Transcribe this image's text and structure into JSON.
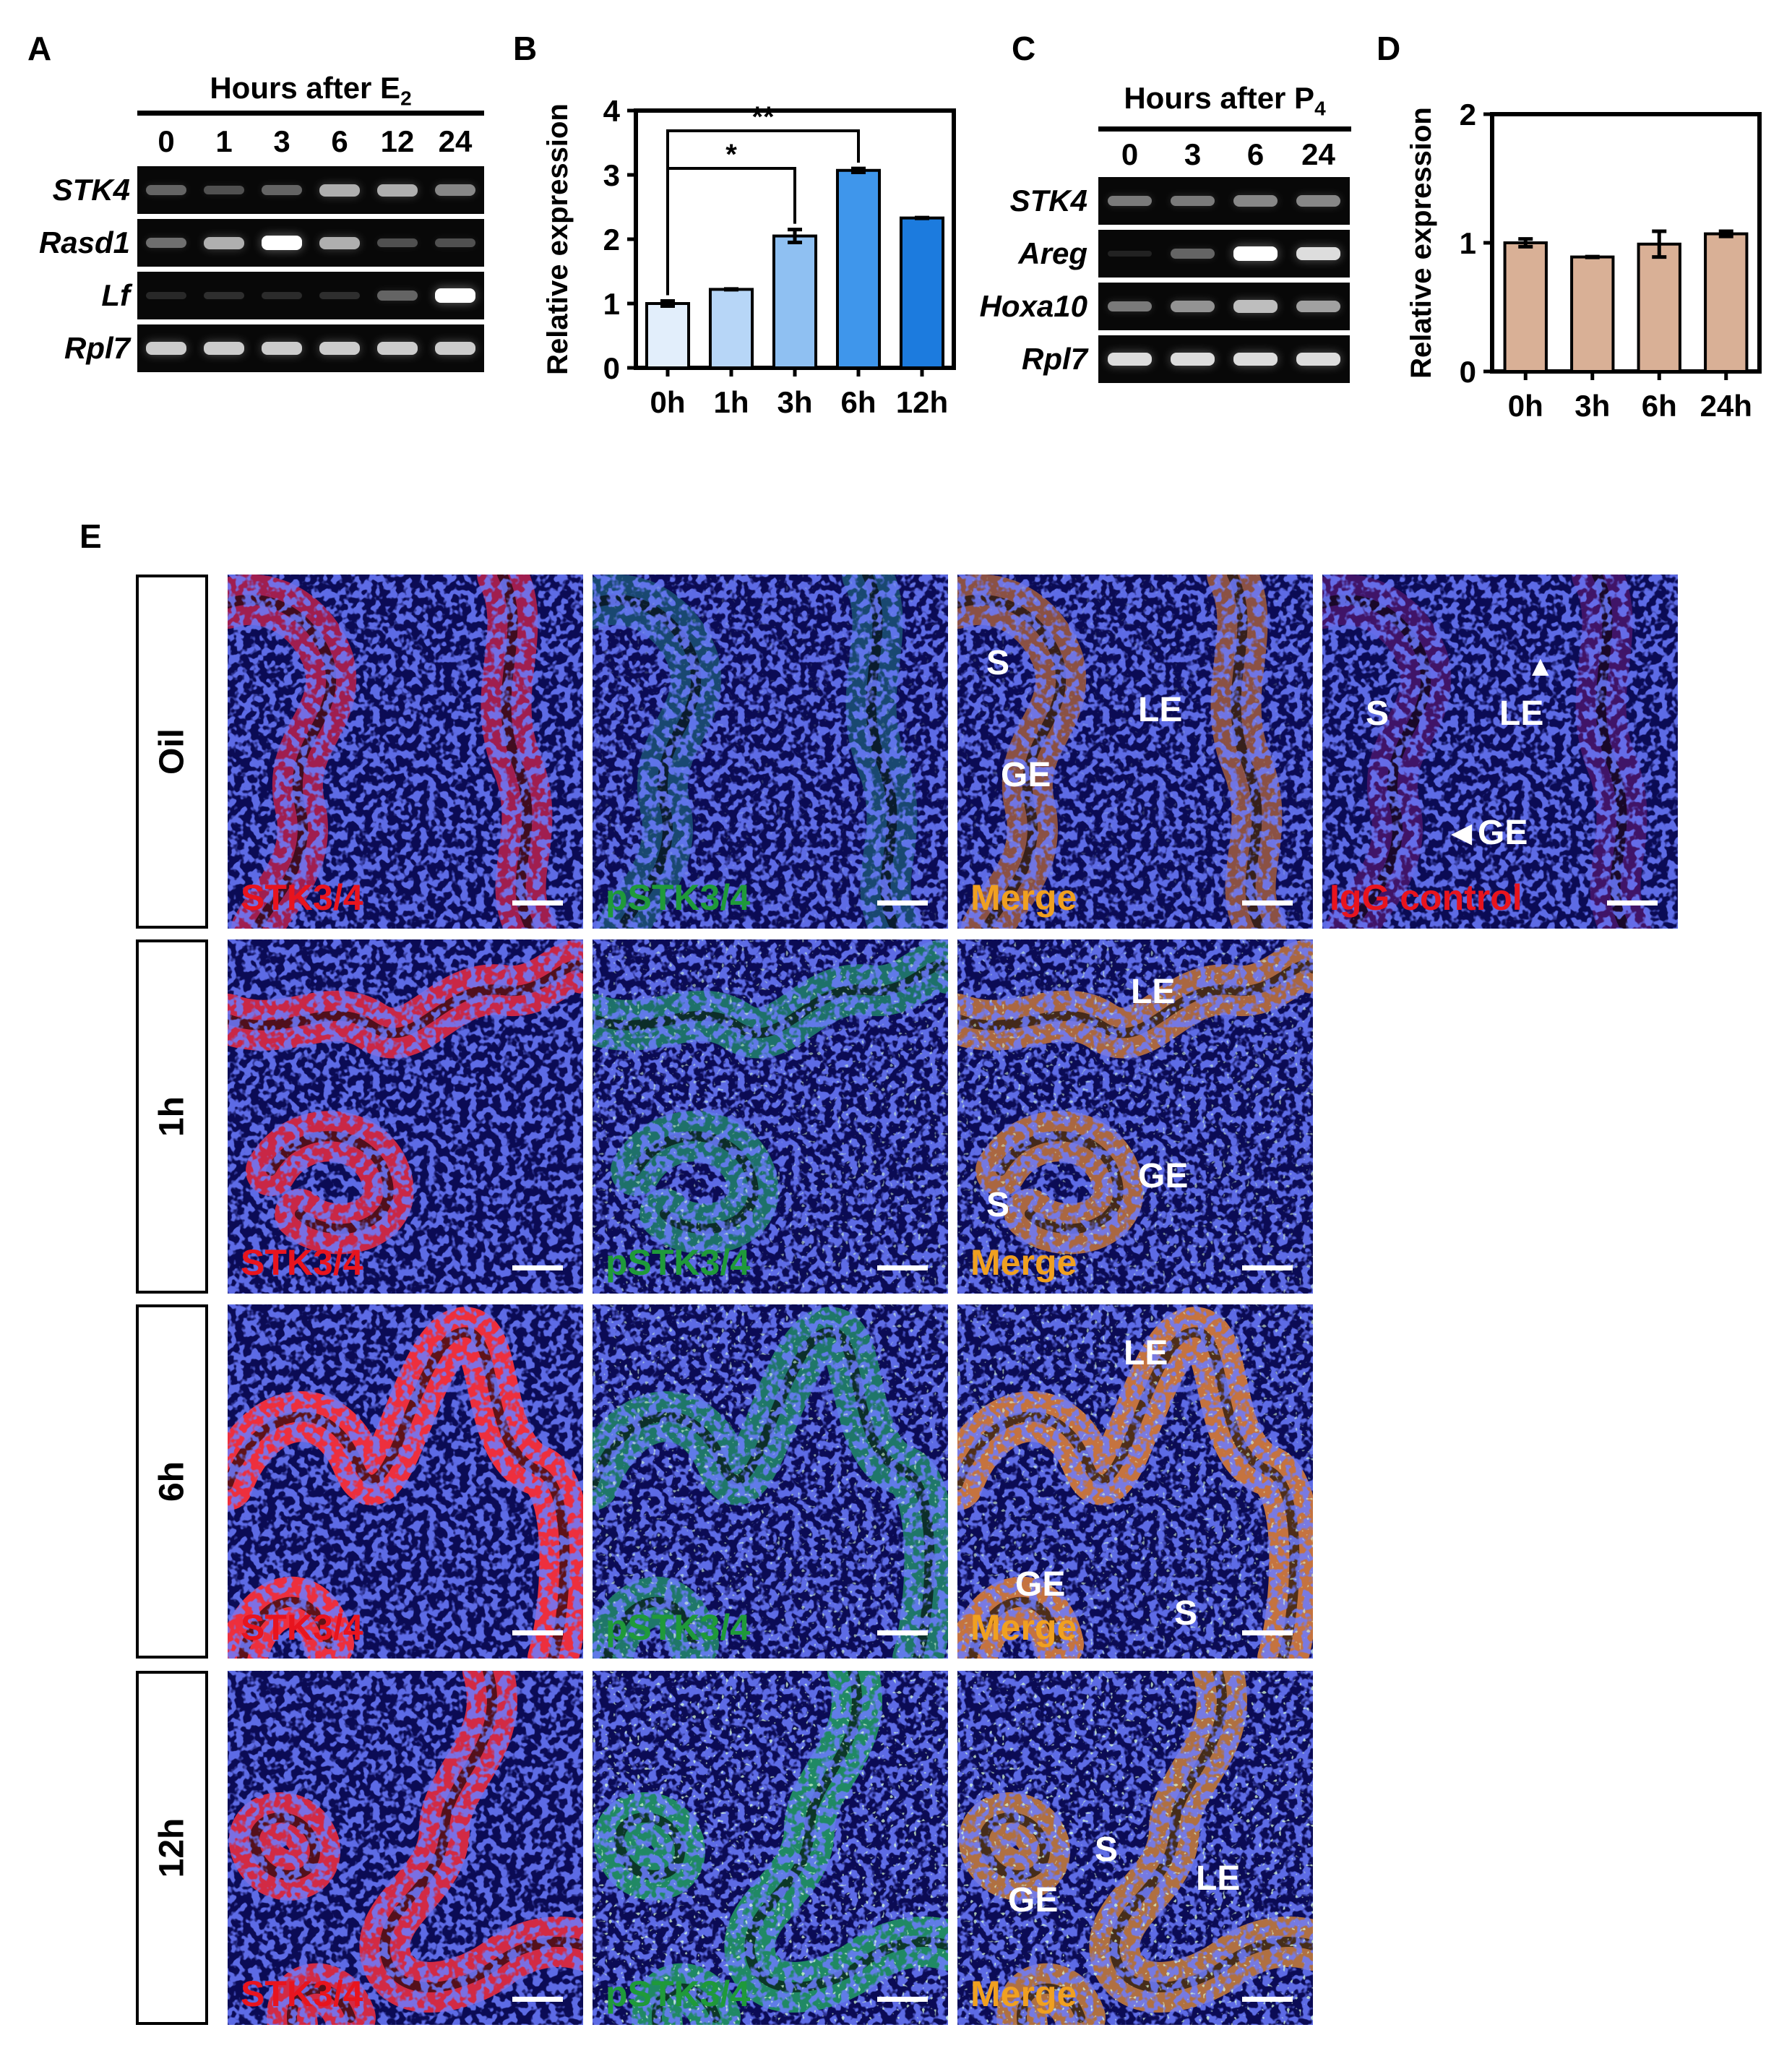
{
  "panels": {
    "A": "A",
    "B": "B",
    "C": "C",
    "D": "D",
    "E": "E"
  },
  "panel_a": {
    "header": "Hours after E",
    "header_sub": "2",
    "lanes": [
      "0",
      "1",
      "3",
      "6",
      "12",
      "24"
    ],
    "genes": [
      "STK4",
      "Rasd1",
      "Lf",
      "Rpl7"
    ],
    "band_intensity": [
      [
        0.45,
        0.35,
        0.45,
        0.75,
        0.75,
        0.6
      ],
      [
        0.5,
        0.75,
        1.0,
        0.75,
        0.35,
        0.35
      ],
      [
        0.1,
        0.15,
        0.12,
        0.15,
        0.45,
        1.0
      ],
      [
        0.85,
        0.85,
        0.85,
        0.85,
        0.85,
        0.85
      ]
    ]
  },
  "panel_c": {
    "header": "Hours after P",
    "header_sub": "4",
    "lanes": [
      "0",
      "3",
      "6",
      "24"
    ],
    "genes": [
      "STK4",
      "Areg",
      "Hoxa10",
      "Rpl7"
    ],
    "band_intensity": [
      [
        0.55,
        0.55,
        0.6,
        0.6
      ],
      [
        0.05,
        0.45,
        1.0,
        0.9
      ],
      [
        0.55,
        0.65,
        0.8,
        0.7
      ],
      [
        0.9,
        0.9,
        0.9,
        0.9
      ]
    ]
  },
  "chart_data": [
    {
      "type": "bar",
      "categories": [
        "0h",
        "1h",
        "3h",
        "6h",
        "12h"
      ],
      "values": [
        1.0,
        1.22,
        2.05,
        3.07,
        2.33
      ],
      "errors": [
        0.04,
        0.0,
        0.1,
        0.03,
        0.0
      ],
      "colors": [
        "#e2eefb",
        "#b7d6f7",
        "#8fc0f2",
        "#3f96eb",
        "#1c7bde"
      ],
      "ylabel": "Relative expression",
      "ylim": [
        0,
        4
      ],
      "yticks": [
        "0",
        "1",
        "2",
        "3",
        "4"
      ],
      "significance": [
        {
          "from": "0h",
          "to": "3h",
          "label": "*"
        },
        {
          "from": "0h",
          "to": "6h",
          "label": "**"
        }
      ]
    },
    {
      "type": "bar",
      "categories": [
        "0h",
        "3h",
        "6h",
        "24h"
      ],
      "values": [
        1.0,
        0.89,
        0.99,
        1.07
      ],
      "errors": [
        0.03,
        0.0,
        0.1,
        0.02
      ],
      "colors": [
        "#d9b096",
        "#d9b096",
        "#d9b096",
        "#d9b096"
      ],
      "ylabel": "Relative expression",
      "ylim": [
        0,
        2
      ],
      "yticks": [
        "0",
        "1",
        "2"
      ]
    }
  ],
  "panel_e": {
    "rows": [
      "Oil",
      "1h",
      "6h",
      "12h"
    ],
    "channel_labels": {
      "stk": "STK3/4",
      "pstk": "pSTK3/4",
      "merge": "Merge",
      "igg": "IgG control"
    },
    "label_colors": {
      "stk": "#e8141e",
      "pstk": "#1f9a3a",
      "merge": "#f0a020",
      "igg": "#e8141e"
    },
    "regions": {
      "S": "S",
      "LE": "LE",
      "GE": "GE"
    }
  }
}
